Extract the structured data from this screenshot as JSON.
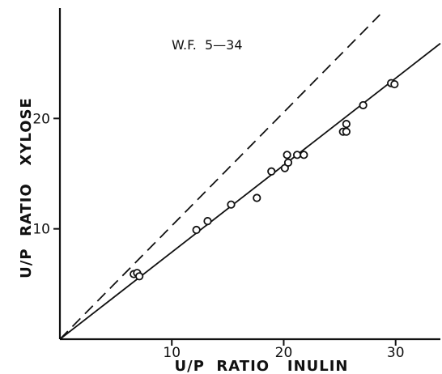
{
  "chart_data": {
    "type": "scatter",
    "annotation": "W.F.  5—34",
    "xlabel": "U/P  RATIO   INULIN",
    "ylabel": "U/P  RATIO   XYLOSE",
    "xlim": [
      0,
      34
    ],
    "ylim": [
      0,
      30
    ],
    "xticks": [
      10,
      20,
      30
    ],
    "yticks": [
      10,
      20
    ],
    "grid": false,
    "points": [
      {
        "x": 6.6,
        "y": 5.9
      },
      {
        "x": 6.9,
        "y": 6.0
      },
      {
        "x": 7.1,
        "y": 5.7
      },
      {
        "x": 12.2,
        "y": 9.9
      },
      {
        "x": 13.2,
        "y": 10.7
      },
      {
        "x": 15.3,
        "y": 12.2
      },
      {
        "x": 17.6,
        "y": 12.8
      },
      {
        "x": 18.9,
        "y": 15.2
      },
      {
        "x": 20.1,
        "y": 15.5
      },
      {
        "x": 20.3,
        "y": 16.7
      },
      {
        "x": 20.4,
        "y": 16.0
      },
      {
        "x": 21.2,
        "y": 16.7
      },
      {
        "x": 21.8,
        "y": 16.7
      },
      {
        "x": 25.3,
        "y": 18.8
      },
      {
        "x": 25.6,
        "y": 19.5
      },
      {
        "x": 25.6,
        "y": 18.8
      },
      {
        "x": 27.1,
        "y": 21.2
      },
      {
        "x": 29.6,
        "y": 23.2
      },
      {
        "x": 29.9,
        "y": 23.1
      }
    ],
    "lines": [
      {
        "style": "solid",
        "from": [
          0,
          0
        ],
        "to": [
          34,
          26.8
        ]
      },
      {
        "style": "dashed",
        "from": [
          0,
          0
        ],
        "to": [
          28.6,
          29.4
        ]
      }
    ]
  }
}
